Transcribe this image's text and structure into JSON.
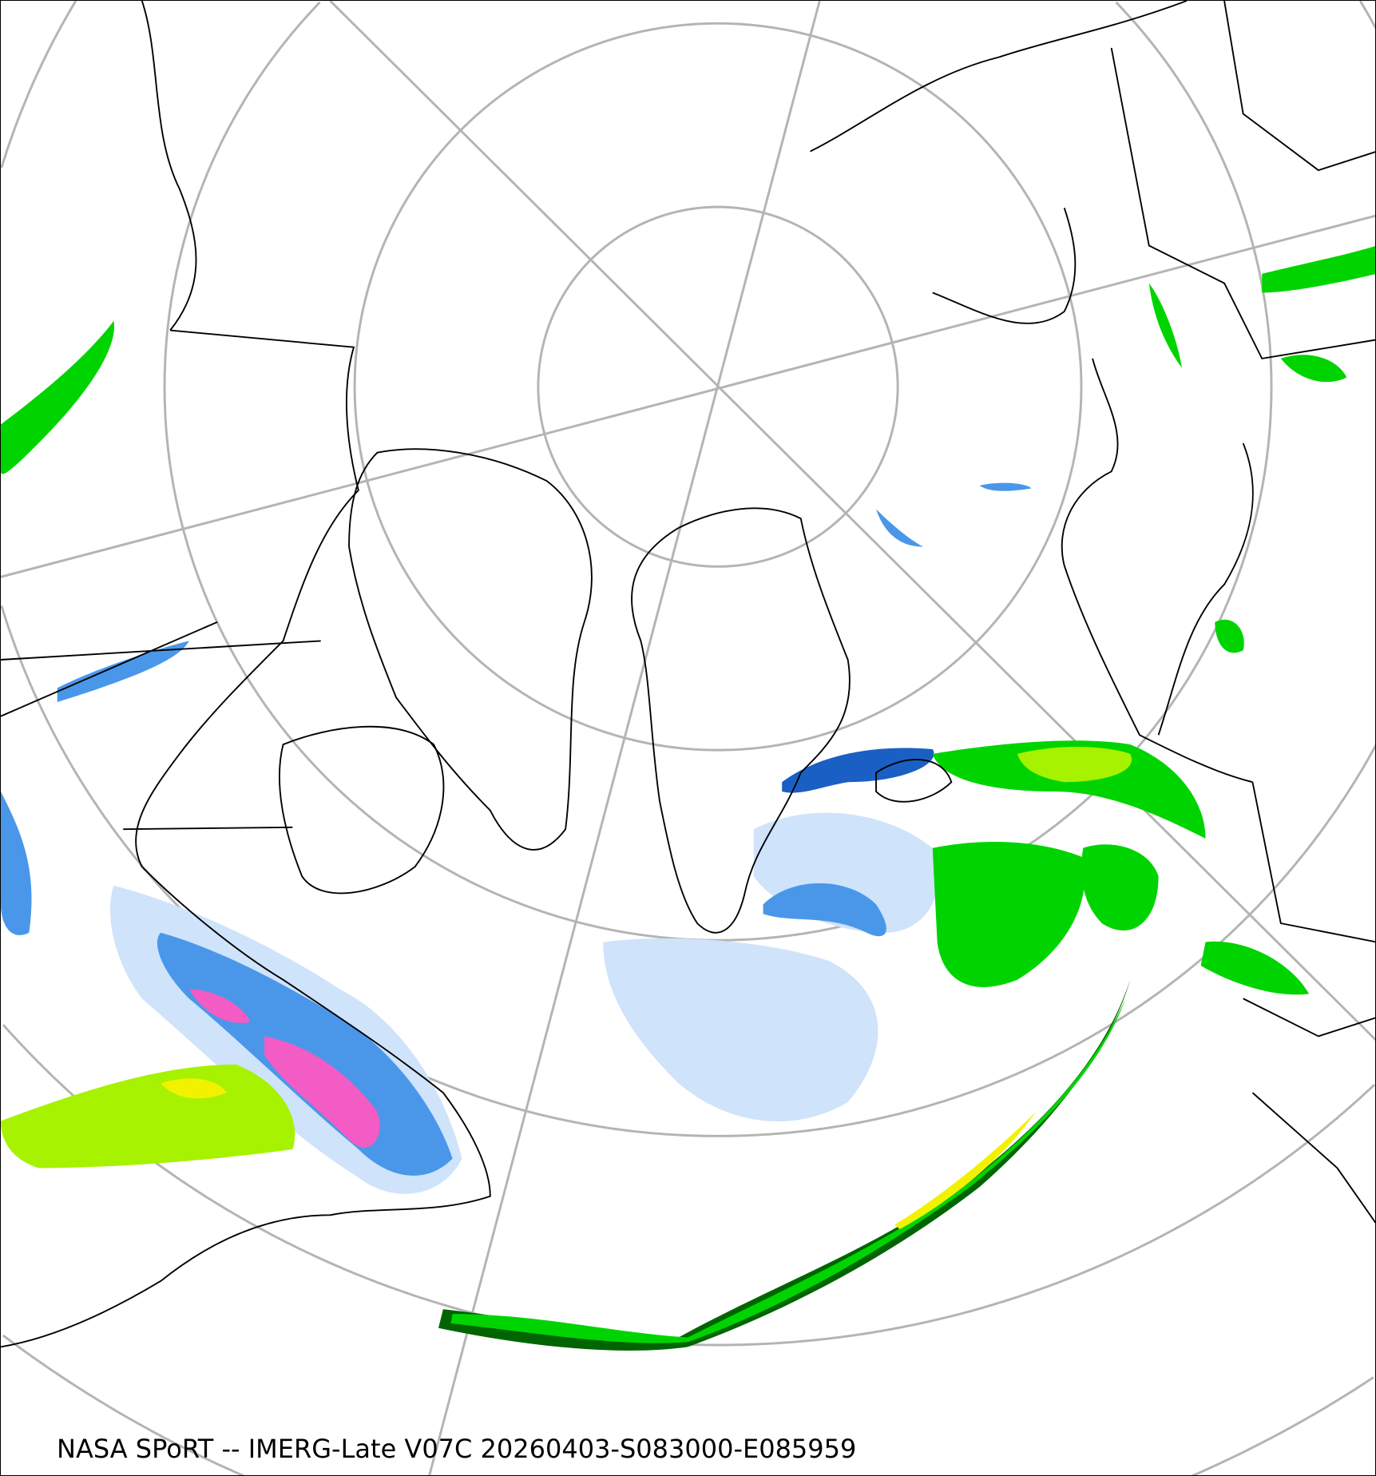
{
  "caption": "NASA SPoRT -- IMERG-Late V07C 20260403-S083000-E085959",
  "map": {
    "projection": "north polar stereographic",
    "graticule_color": "#b4b4b4",
    "coastline_color": "#000000",
    "precip_colors": {
      "light_snow": "#cfe3fb",
      "snow": "#4a97ea",
      "heavy_snow": "#1a5fc4",
      "mixed": "#f25cc4",
      "light_rain": "#00d400",
      "rain": "#a6f200",
      "moderate_rain": "#f2f200",
      "heavy_rain": "#006400"
    }
  }
}
